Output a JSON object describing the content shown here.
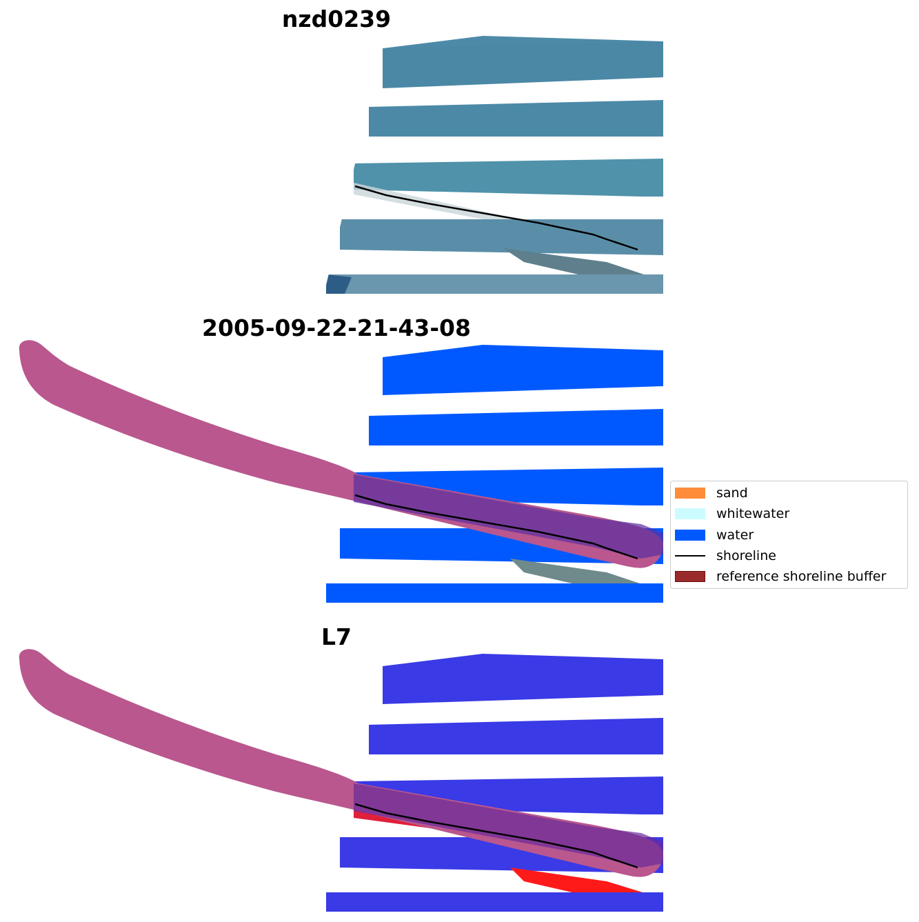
{
  "panels": [
    {
      "title": "nzd0239",
      "style": "rgb"
    },
    {
      "title": "2005-09-22-21-43-08",
      "style": "classified"
    },
    {
      "title": "L7",
      "style": "index"
    }
  ],
  "legend": {
    "items": [
      {
        "label": "sand",
        "color": "#ff8c3a",
        "kind": "patch"
      },
      {
        "label": "whitewater",
        "color": "#ccfbff",
        "kind": "patch"
      },
      {
        "label": "water",
        "color": "#0059ff",
        "kind": "patch"
      },
      {
        "label": "shoreline",
        "color": "#000000",
        "kind": "line"
      },
      {
        "label": "reference shoreline buffer",
        "color": "#9b2a2a",
        "kind": "patch"
      }
    ]
  },
  "colors": {
    "rgb_water": "#4a8aa8",
    "classified_water": "#0059ff",
    "index_water": "#3a3ae6",
    "index_land": "#ff1a1a",
    "buffer_overlay": "#b9578e",
    "shoreline": "#000000"
  }
}
